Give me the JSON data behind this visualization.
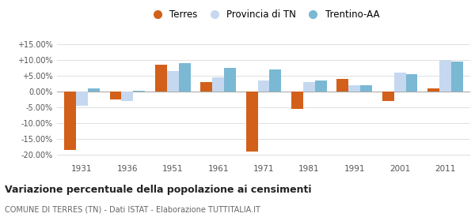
{
  "years": [
    1931,
    1936,
    1951,
    1961,
    1971,
    1981,
    1991,
    2001,
    2011
  ],
  "terres": [
    -18.5,
    -2.5,
    8.5,
    3.0,
    -19.0,
    -5.5,
    4.0,
    -3.0,
    1.0
  ],
  "provincia_tn": [
    -4.5,
    -3.0,
    6.5,
    4.5,
    3.5,
    3.0,
    2.0,
    6.0,
    10.0
  ],
  "trentino_aa": [
    1.0,
    0.3,
    9.0,
    7.5,
    7.0,
    3.5,
    2.0,
    5.5,
    9.5
  ],
  "color_terres": "#d2601a",
  "color_provincia": "#c5d8f0",
  "color_trentino": "#7ab8d4",
  "title": "Variazione percentuale della popolazione ai censimenti",
  "subtitle": "COMUNE DI TERRES (TN) - Dati ISTAT - Elaborazione TUTTITALIA.IT",
  "legend_labels": [
    "Terres",
    "Provincia di TN",
    "Trentino-AA"
  ],
  "ylim": [
    -22,
    17
  ],
  "yticks": [
    -20.0,
    -15.0,
    -10.0,
    -5.0,
    0.0,
    5.0,
    10.0,
    15.0
  ],
  "background_color": "#ffffff",
  "grid_color": "#e0e0e0"
}
